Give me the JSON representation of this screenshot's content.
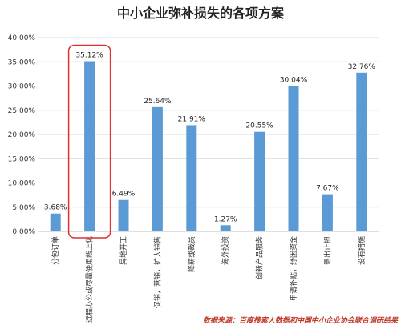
{
  "chart_data": {
    "type": "bar",
    "title": "中小企业弥补损失的各项方案",
    "categories": [
      "分包订单",
      "远程办公或尽量使用线上化",
      "异地开工",
      "促销，营销，扩大销售",
      "降薪或裁员",
      "海外投资",
      "创新产品服务",
      "申请补贴，纾困资金",
      "退出止损",
      "没有措施"
    ],
    "values": [
      3.68,
      35.12,
      6.49,
      25.64,
      21.91,
      1.27,
      20.55,
      30.04,
      7.67,
      32.76
    ],
    "value_labels": [
      "3.68%",
      "35.12%",
      "6.49%",
      "25.64%",
      "21.91%",
      "1.27%",
      "20.55%",
      "30.04%",
      "7.67%",
      "32.76%"
    ],
    "y_ticks": [
      "0.00%",
      "5.00%",
      "10.00%",
      "15.00%",
      "20.00%",
      "25.00%",
      "30.00%",
      "35.00%",
      "40.00%"
    ],
    "ylim": [
      0,
      40
    ],
    "grid": true,
    "highlight_index": 1,
    "colors": {
      "bar": "#5b9bd5",
      "grid": "#d9d9d9",
      "highlight": "#e03030"
    },
    "source": "数据来源：百度搜索大数据和中国中小企业协会联合调研结果"
  }
}
